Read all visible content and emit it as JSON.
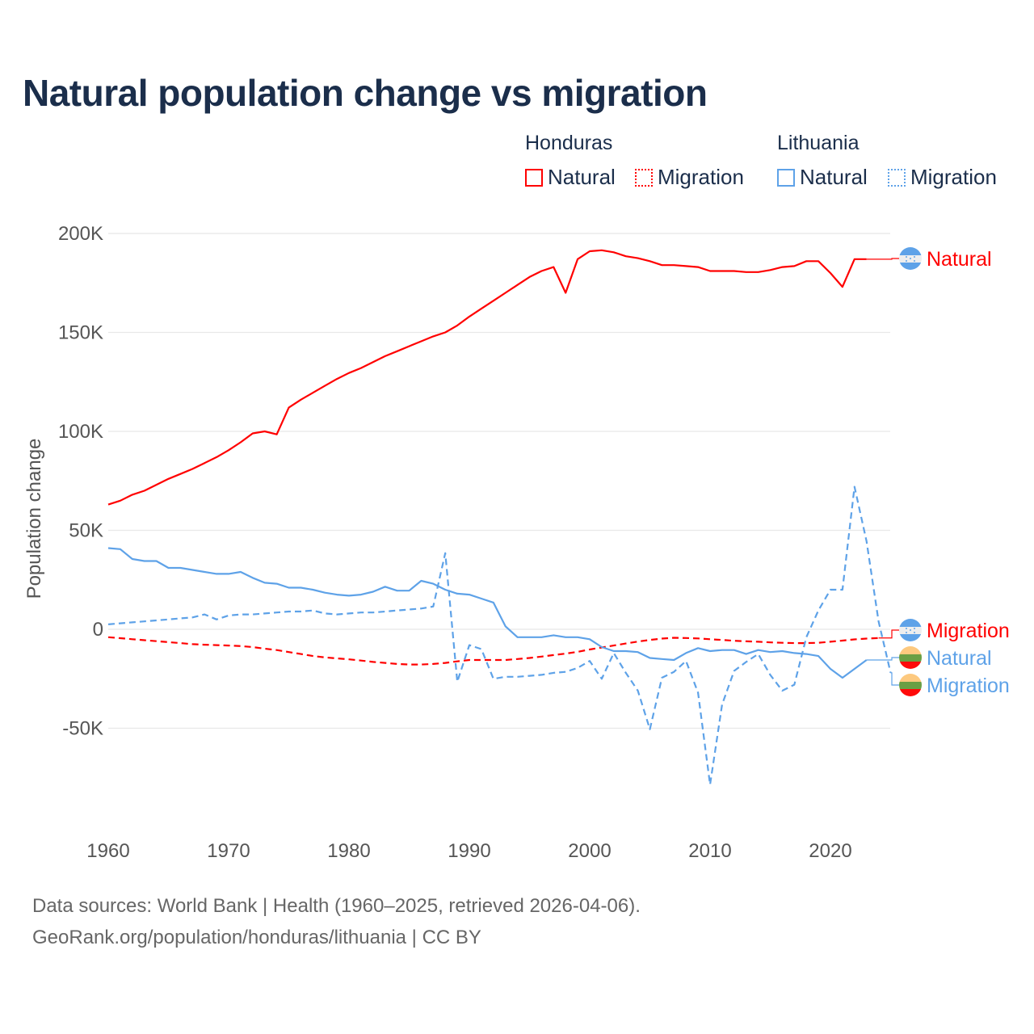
{
  "title": "Natural population change vs migration",
  "legend": {
    "groups": [
      {
        "name": "Honduras",
        "color": "#ff0000",
        "items": [
          "Natural",
          "Migration"
        ]
      },
      {
        "name": "Lithuania",
        "color": "#5ea2e8",
        "items": [
          "Natural",
          "Migration"
        ]
      }
    ]
  },
  "footer": {
    "line1": "Data sources: World Bank | Health (1960–2025, retrieved 2026-04-06).",
    "line2": "GeoRank.org/population/honduras/lithuania | CC BY"
  },
  "chart_data": {
    "type": "line",
    "title": "Natural population change vs migration",
    "xlabel": "",
    "ylabel": "Population change",
    "xlim": [
      1960,
      2025
    ],
    "ylim": [
      -90000,
      205000
    ],
    "x_ticks": [
      1960,
      1970,
      1980,
      1990,
      2000,
      2010,
      2020
    ],
    "y_ticks": [
      {
        "v": 200000,
        "label": "200K"
      },
      {
        "v": 150000,
        "label": "150K"
      },
      {
        "v": 100000,
        "label": "100K"
      },
      {
        "v": 50000,
        "label": "50K"
      },
      {
        "v": 0,
        "label": "0"
      },
      {
        "v": -50000,
        "label": "-50K"
      }
    ],
    "grid": true,
    "series": [
      {
        "name": "Honduras Natural",
        "country": "Honduras",
        "label": "Natural",
        "color": "#ff0000",
        "dash": false,
        "start": 1960,
        "values": [
          63000,
          65000,
          68000,
          70000,
          73000,
          76000,
          78500,
          81000,
          84000,
          87000,
          90500,
          94500,
          99000,
          100000,
          98500,
          112000,
          116000,
          119500,
          123000,
          126500,
          129500,
          132000,
          135000,
          138000,
          140500,
          143000,
          145500,
          148000,
          150000,
          153500,
          158000,
          162000,
          166000,
          170000,
          174000,
          178000,
          181000,
          183000,
          170000,
          187000,
          191000,
          191500,
          190500,
          188500,
          187500,
          186000,
          184000,
          184000,
          183500,
          183000,
          181000,
          181000,
          181000,
          180500,
          180500,
          181500,
          183000,
          183500,
          186000,
          186000,
          180000,
          173000,
          187000,
          187000
        ]
      },
      {
        "name": "Honduras Migration",
        "country": "Honduras",
        "label": "Migration",
        "color": "#ff0000",
        "dash": true,
        "start": 1960,
        "values": [
          -4000,
          -4500,
          -5000,
          -5500,
          -6000,
          -6500,
          -7000,
          -7500,
          -7800,
          -8000,
          -8200,
          -8500,
          -9000,
          -9800,
          -10500,
          -11500,
          -12500,
          -13500,
          -14200,
          -14700,
          -15200,
          -15800,
          -16500,
          -17000,
          -17500,
          -17800,
          -17800,
          -17500,
          -17000,
          -16200,
          -15500,
          -15500,
          -15500,
          -15500,
          -15000,
          -14500,
          -13800,
          -13000,
          -12300,
          -11400,
          -10200,
          -9200,
          -8200,
          -7200,
          -6200,
          -5400,
          -4700,
          -4300,
          -4400,
          -4600,
          -5000,
          -5400,
          -5800,
          -6100,
          -6300,
          -6600,
          -6800,
          -7000,
          -7000,
          -6800,
          -6300,
          -5700,
          -5100,
          -4700,
          -4400
        ]
      },
      {
        "name": "Lithuania Natural",
        "country": "Lithuania",
        "label": "Natural",
        "color": "#5ea2e8",
        "dash": false,
        "start": 1960,
        "values": [
          41000,
          40500,
          35500,
          34500,
          34500,
          31000,
          31000,
          30000,
          29000,
          28000,
          28000,
          29000,
          26000,
          23500,
          23000,
          21000,
          21000,
          20000,
          18500,
          17500,
          17000,
          17500,
          19000,
          21500,
          19500,
          19500,
          24500,
          23000,
          20000,
          18000,
          17500,
          15500,
          13500,
          1500,
          -4000,
          -4000,
          -4000,
          -3000,
          -4000,
          -4000,
          -5000,
          -9000,
          -11000,
          -11000,
          -11500,
          -14500,
          -15000,
          -15500,
          -12000,
          -9500,
          -11000,
          -10500,
          -10500,
          -12500,
          -10500,
          -11500,
          -11000,
          -12000,
          -12500,
          -13500,
          -20000,
          -24500,
          -20000,
          -15500
        ]
      },
      {
        "name": "Lithuania Migration",
        "country": "Lithuania",
        "label": "Migration",
        "color": "#5ea2e8",
        "dash": true,
        "start": 1960,
        "values": [
          2500,
          3000,
          3500,
          4000,
          4500,
          5000,
          5500,
          6000,
          7500,
          5000,
          7000,
          7500,
          7500,
          8000,
          8500,
          9000,
          9000,
          9500,
          8000,
          7500,
          8000,
          8500,
          8500,
          9000,
          9500,
          10000,
          10500,
          11500,
          38500,
          -26500,
          -8000,
          -10000,
          -25000,
          -24000,
          -24000,
          -23500,
          -23000,
          -22000,
          -21500,
          -19500,
          -16000,
          -25000,
          -12000,
          -22000,
          -31000,
          -50500,
          -24500,
          -21500,
          -16000,
          -32000,
          -78500,
          -38000,
          -21000,
          -16500,
          -12500,
          -23000,
          -31000,
          -28000,
          -4000,
          9500,
          20000,
          20000,
          72000,
          44500,
          4000,
          -22000
        ]
      }
    ]
  }
}
